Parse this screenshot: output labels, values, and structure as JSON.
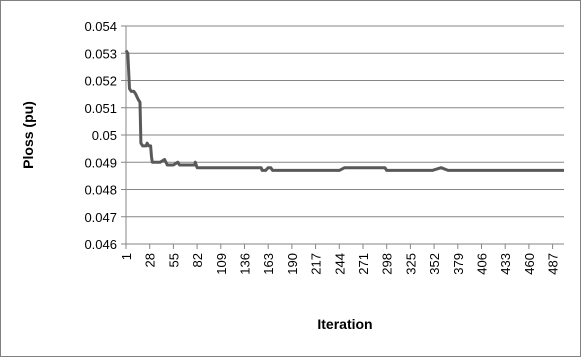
{
  "chart_data": {
    "type": "line",
    "title": "",
    "xlabel": "Iteration",
    "ylabel": "Ploss (pu)",
    "x_tick_labels": [
      "1",
      "28",
      "55",
      "82",
      "109",
      "136",
      "163",
      "190",
      "217",
      "244",
      "271",
      "298",
      "325",
      "352",
      "379",
      "406",
      "433",
      "460",
      "487"
    ],
    "y_tick_labels": [
      "0.046",
      "0.047",
      "0.048",
      "0.049",
      "0.05",
      "0.051",
      "0.052",
      "0.053",
      "0.054"
    ],
    "ylim": [
      0.046,
      0.054
    ],
    "xlim": [
      1,
      500
    ],
    "grid": "horizontal",
    "legend": "none",
    "series_color": "#595959",
    "series": [
      {
        "points": [
          [
            1,
            0.0531
          ],
          [
            3,
            0.053
          ],
          [
            5,
            0.0517
          ],
          [
            7,
            0.0516
          ],
          [
            10,
            0.0516
          ],
          [
            12,
            0.0515
          ],
          [
            15,
            0.0513
          ],
          [
            17,
            0.0512
          ],
          [
            18,
            0.0497
          ],
          [
            20,
            0.0496
          ],
          [
            22,
            0.0496
          ],
          [
            24,
            0.0496
          ],
          [
            25,
            0.0497
          ],
          [
            27,
            0.0496
          ],
          [
            29,
            0.0496
          ],
          [
            30,
            0.0492
          ],
          [
            31,
            0.049
          ],
          [
            35,
            0.049
          ],
          [
            40,
            0.049
          ],
          [
            45,
            0.0491
          ],
          [
            48,
            0.0489
          ],
          [
            55,
            0.0489
          ],
          [
            60,
            0.049
          ],
          [
            62,
            0.0489
          ],
          [
            70,
            0.0489
          ],
          [
            79,
            0.0489
          ],
          [
            80,
            0.049
          ],
          [
            82,
            0.0488
          ],
          [
            100,
            0.0488
          ],
          [
            120,
            0.0488
          ],
          [
            135,
            0.0488
          ],
          [
            140,
            0.0488
          ],
          [
            155,
            0.0488
          ],
          [
            156,
            0.0487
          ],
          [
            160,
            0.0487
          ],
          [
            163,
            0.0488
          ],
          [
            166,
            0.0488
          ],
          [
            168,
            0.0487
          ],
          [
            190,
            0.0487
          ],
          [
            200,
            0.0487
          ],
          [
            210,
            0.0487
          ],
          [
            244,
            0.0487
          ],
          [
            250,
            0.0488
          ],
          [
            296,
            0.0488
          ],
          [
            298,
            0.0487
          ],
          [
            350,
            0.0487
          ],
          [
            360,
            0.0488
          ],
          [
            368,
            0.0487
          ],
          [
            400,
            0.0487
          ],
          [
            460,
            0.0487
          ],
          [
            500,
            0.0487
          ]
        ]
      }
    ]
  }
}
